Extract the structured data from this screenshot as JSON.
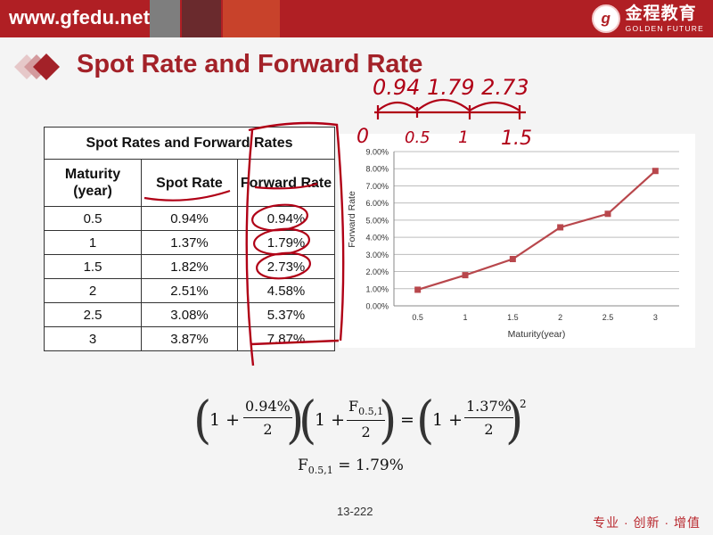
{
  "header": {
    "site": "www.gfedu.net",
    "logo_mark": "g",
    "logo_cn": "金程教育",
    "logo_en": "GOLDEN FUTURE",
    "colors": {
      "band": "#b01f24",
      "title": "#a32128"
    }
  },
  "slide": {
    "title": "Spot Rate and Forward Rate",
    "page_number": "13-222",
    "slogan": "专业 · 创新 · 增值"
  },
  "table": {
    "caption": "Spot Rates and Forward Rates",
    "headers": {
      "maturity": "Maturity (year)",
      "spot": "Spot Rate",
      "forward": "Forward Rate"
    },
    "rows": [
      {
        "maturity": "0.5",
        "spot": "0.94%",
        "forward": "0.94%"
      },
      {
        "maturity": "1",
        "spot": "1.37%",
        "forward": "1.79%"
      },
      {
        "maturity": "1.5",
        "spot": "1.82%",
        "forward": "2.73%"
      },
      {
        "maturity": "2",
        "spot": "2.51%",
        "forward": "4.58%"
      },
      {
        "maturity": "2.5",
        "spot": "3.08%",
        "forward": "5.37%"
      },
      {
        "maturity": "3",
        "spot": "3.87%",
        "forward": "7.87%"
      }
    ]
  },
  "chart_data": {
    "type": "line",
    "x": [
      "0.5",
      "1",
      "1.5",
      "2",
      "2.5",
      "3"
    ],
    "series": [
      {
        "values": [
          0.94,
          1.79,
          2.73,
          4.58,
          5.37,
          7.87
        ],
        "color": "#b8474c"
      }
    ],
    "xlabel": "Maturity(year)",
    "ylabel": "Forward Rate",
    "y_ticks": [
      "0.00%",
      "1.00%",
      "2.00%",
      "3.00%",
      "4.00%",
      "5.00%",
      "6.00%",
      "7.00%",
      "8.00%",
      "9.00%"
    ],
    "ylim": [
      0,
      9
    ],
    "grid": true
  },
  "formula": {
    "one": "1 +",
    "frac1_num": "0.94%",
    "frac1_den": "2",
    "frac2_num_main": "F",
    "frac2_num_sub": "0.5,1",
    "frac2_den": "2",
    "equals": "=",
    "frac3_num": "1.37%",
    "frac3_den": "2",
    "exponent": "2",
    "result_main": "F",
    "result_sub": "0.5,1",
    "result_value": "= 1.79%"
  },
  "handwriting": {
    "top_values": "0.94  1.79  2.73",
    "marks": [
      "0",
      "0.5",
      "1",
      "1.5"
    ]
  }
}
